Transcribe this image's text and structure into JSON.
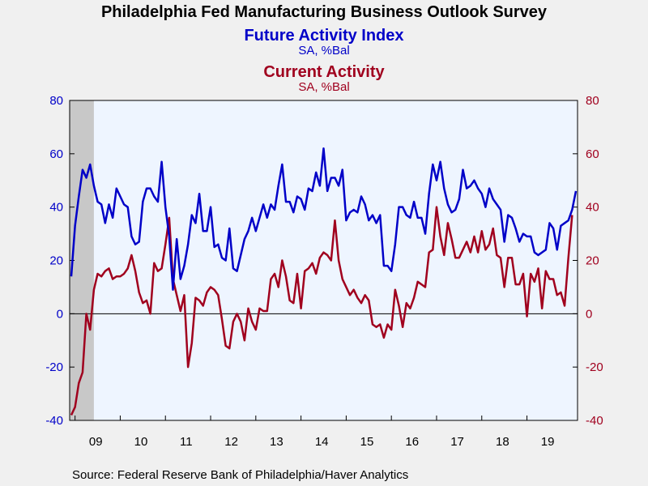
{
  "chart_data": {
    "type": "line",
    "title": "Philadelphia Fed Manufacturing Business Outlook Survey",
    "colors": {
      "future": "#0000c8",
      "current": "#a0001e",
      "recession": "#c8c8c8",
      "plot_bg": "#eef5ff"
    },
    "series": [
      {
        "name": "Future Activity Index",
        "units": "SA, %Bal",
        "axis": "left",
        "start": "2008-12",
        "values": [
          14,
          33,
          44,
          54,
          51,
          56,
          48,
          42,
          41,
          34,
          41,
          36,
          47,
          44,
          41,
          40,
          29,
          26,
          27,
          42,
          47,
          47,
          44,
          42,
          57,
          40,
          29,
          9,
          28,
          13,
          18,
          26,
          37,
          34,
          45,
          31,
          31,
          40,
          25,
          26,
          21,
          20,
          32,
          17,
          16,
          22,
          28,
          31,
          36,
          31,
          36,
          41,
          36,
          41,
          39,
          48,
          56,
          42,
          42,
          38,
          44,
          43,
          39,
          47,
          46,
          53,
          48,
          62,
          46,
          51,
          51,
          48,
          54,
          35,
          38,
          39,
          38,
          44,
          41,
          35,
          37,
          34,
          37,
          18,
          18,
          16,
          26,
          40,
          40,
          37,
          36,
          42,
          36,
          36,
          30,
          45,
          56,
          50,
          57,
          47,
          41,
          38,
          39,
          43,
          54,
          47,
          48,
          50,
          47,
          45,
          40,
          47,
          43,
          41,
          39,
          27,
          37,
          36,
          32,
          27,
          30,
          29,
          29,
          23,
          22,
          23,
          24,
          34,
          32,
          24,
          33,
          34,
          35,
          39,
          46
        ]
      },
      {
        "name": "Current Activity",
        "units": "SA, %Bal",
        "axis": "right",
        "start": "2008-12",
        "values": [
          -38,
          -35,
          -26,
          -22,
          0,
          -6,
          9,
          15,
          14,
          16,
          17,
          13,
          14,
          14,
          15,
          17,
          22,
          16,
          8,
          4,
          5,
          0,
          19,
          16,
          17,
          26,
          36,
          13,
          7,
          1,
          7,
          -20,
          -11,
          6,
          5,
          3,
          8,
          10,
          9,
          7,
          -2,
          -12,
          -13,
          -3,
          0,
          -3,
          -10,
          2,
          -3,
          -6,
          2,
          1,
          1,
          13,
          15,
          10,
          20,
          14,
          5,
          4,
          15,
          2,
          16,
          17,
          19,
          15,
          21,
          23,
          22,
          20,
          35,
          20,
          13,
          10,
          7,
          9,
          6,
          4,
          7,
          5,
          -4,
          -5,
          -4,
          -9,
          -4,
          -6,
          9,
          3,
          -5,
          4,
          2,
          6,
          12,
          11,
          10,
          23,
          24,
          40,
          29,
          22,
          34,
          28,
          21,
          21,
          24,
          27,
          23,
          29,
          23,
          31,
          24,
          26,
          32,
          22,
          21,
          10,
          21,
          21,
          11,
          11,
          15,
          -1,
          15,
          12,
          17,
          2,
          16,
          13,
          13,
          7,
          8,
          3,
          21,
          37
        ]
      }
    ],
    "x": {
      "tick_labels": [
        "09",
        "10",
        "11",
        "12",
        "13",
        "14",
        "15",
        "16",
        "17",
        "18",
        "19"
      ]
    },
    "y_left": {
      "min": -40,
      "max": 80,
      "ticks": [
        -40,
        -20,
        0,
        20,
        40,
        60,
        80
      ]
    },
    "y_right": {
      "min": -40,
      "max": 80,
      "ticks": [
        -40,
        -20,
        0,
        20,
        40,
        60,
        80
      ]
    },
    "recession": {
      "start": "2008-12",
      "end": "2009-06"
    },
    "source": "Source:  Federal Reserve Bank of Philadelphia/Haver Analytics"
  }
}
